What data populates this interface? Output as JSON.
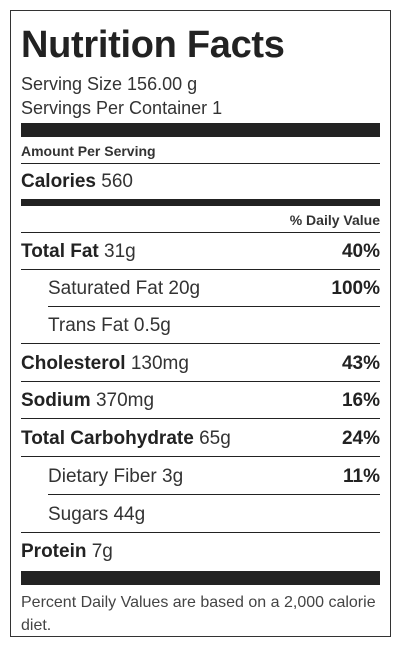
{
  "title": "Nutrition Facts",
  "serving_size": "Serving Size 156.00 g",
  "servings_per_container": "Servings Per Container 1",
  "amount_per_serving": "Amount Per Serving",
  "calories": {
    "label": "Calories",
    "value": "560"
  },
  "daily_value_header": "% Daily Value",
  "nutrients": [
    {
      "label": "Total Fat",
      "amount": "31g",
      "percent": "40%"
    },
    {
      "label": "Saturated Fat",
      "amount": "20g",
      "percent": "100%"
    },
    {
      "label": "Trans Fat",
      "amount": "0.5g",
      "percent": ""
    },
    {
      "label": "Cholesterol",
      "amount": "130mg",
      "percent": "43%"
    },
    {
      "label": "Sodium",
      "amount": "370mg",
      "percent": "16%"
    },
    {
      "label": "Total Carbohydrate",
      "amount": "65g",
      "percent": "24%"
    },
    {
      "label": "Dietary Fiber",
      "amount": "3g",
      "percent": "11%"
    },
    {
      "label": "Sugars",
      "amount": "44g",
      "percent": ""
    },
    {
      "label": "Protein",
      "amount": "7g",
      "percent": ""
    }
  ],
  "footnote": "Percent Daily Values are based on a 2,000 calorie diet."
}
